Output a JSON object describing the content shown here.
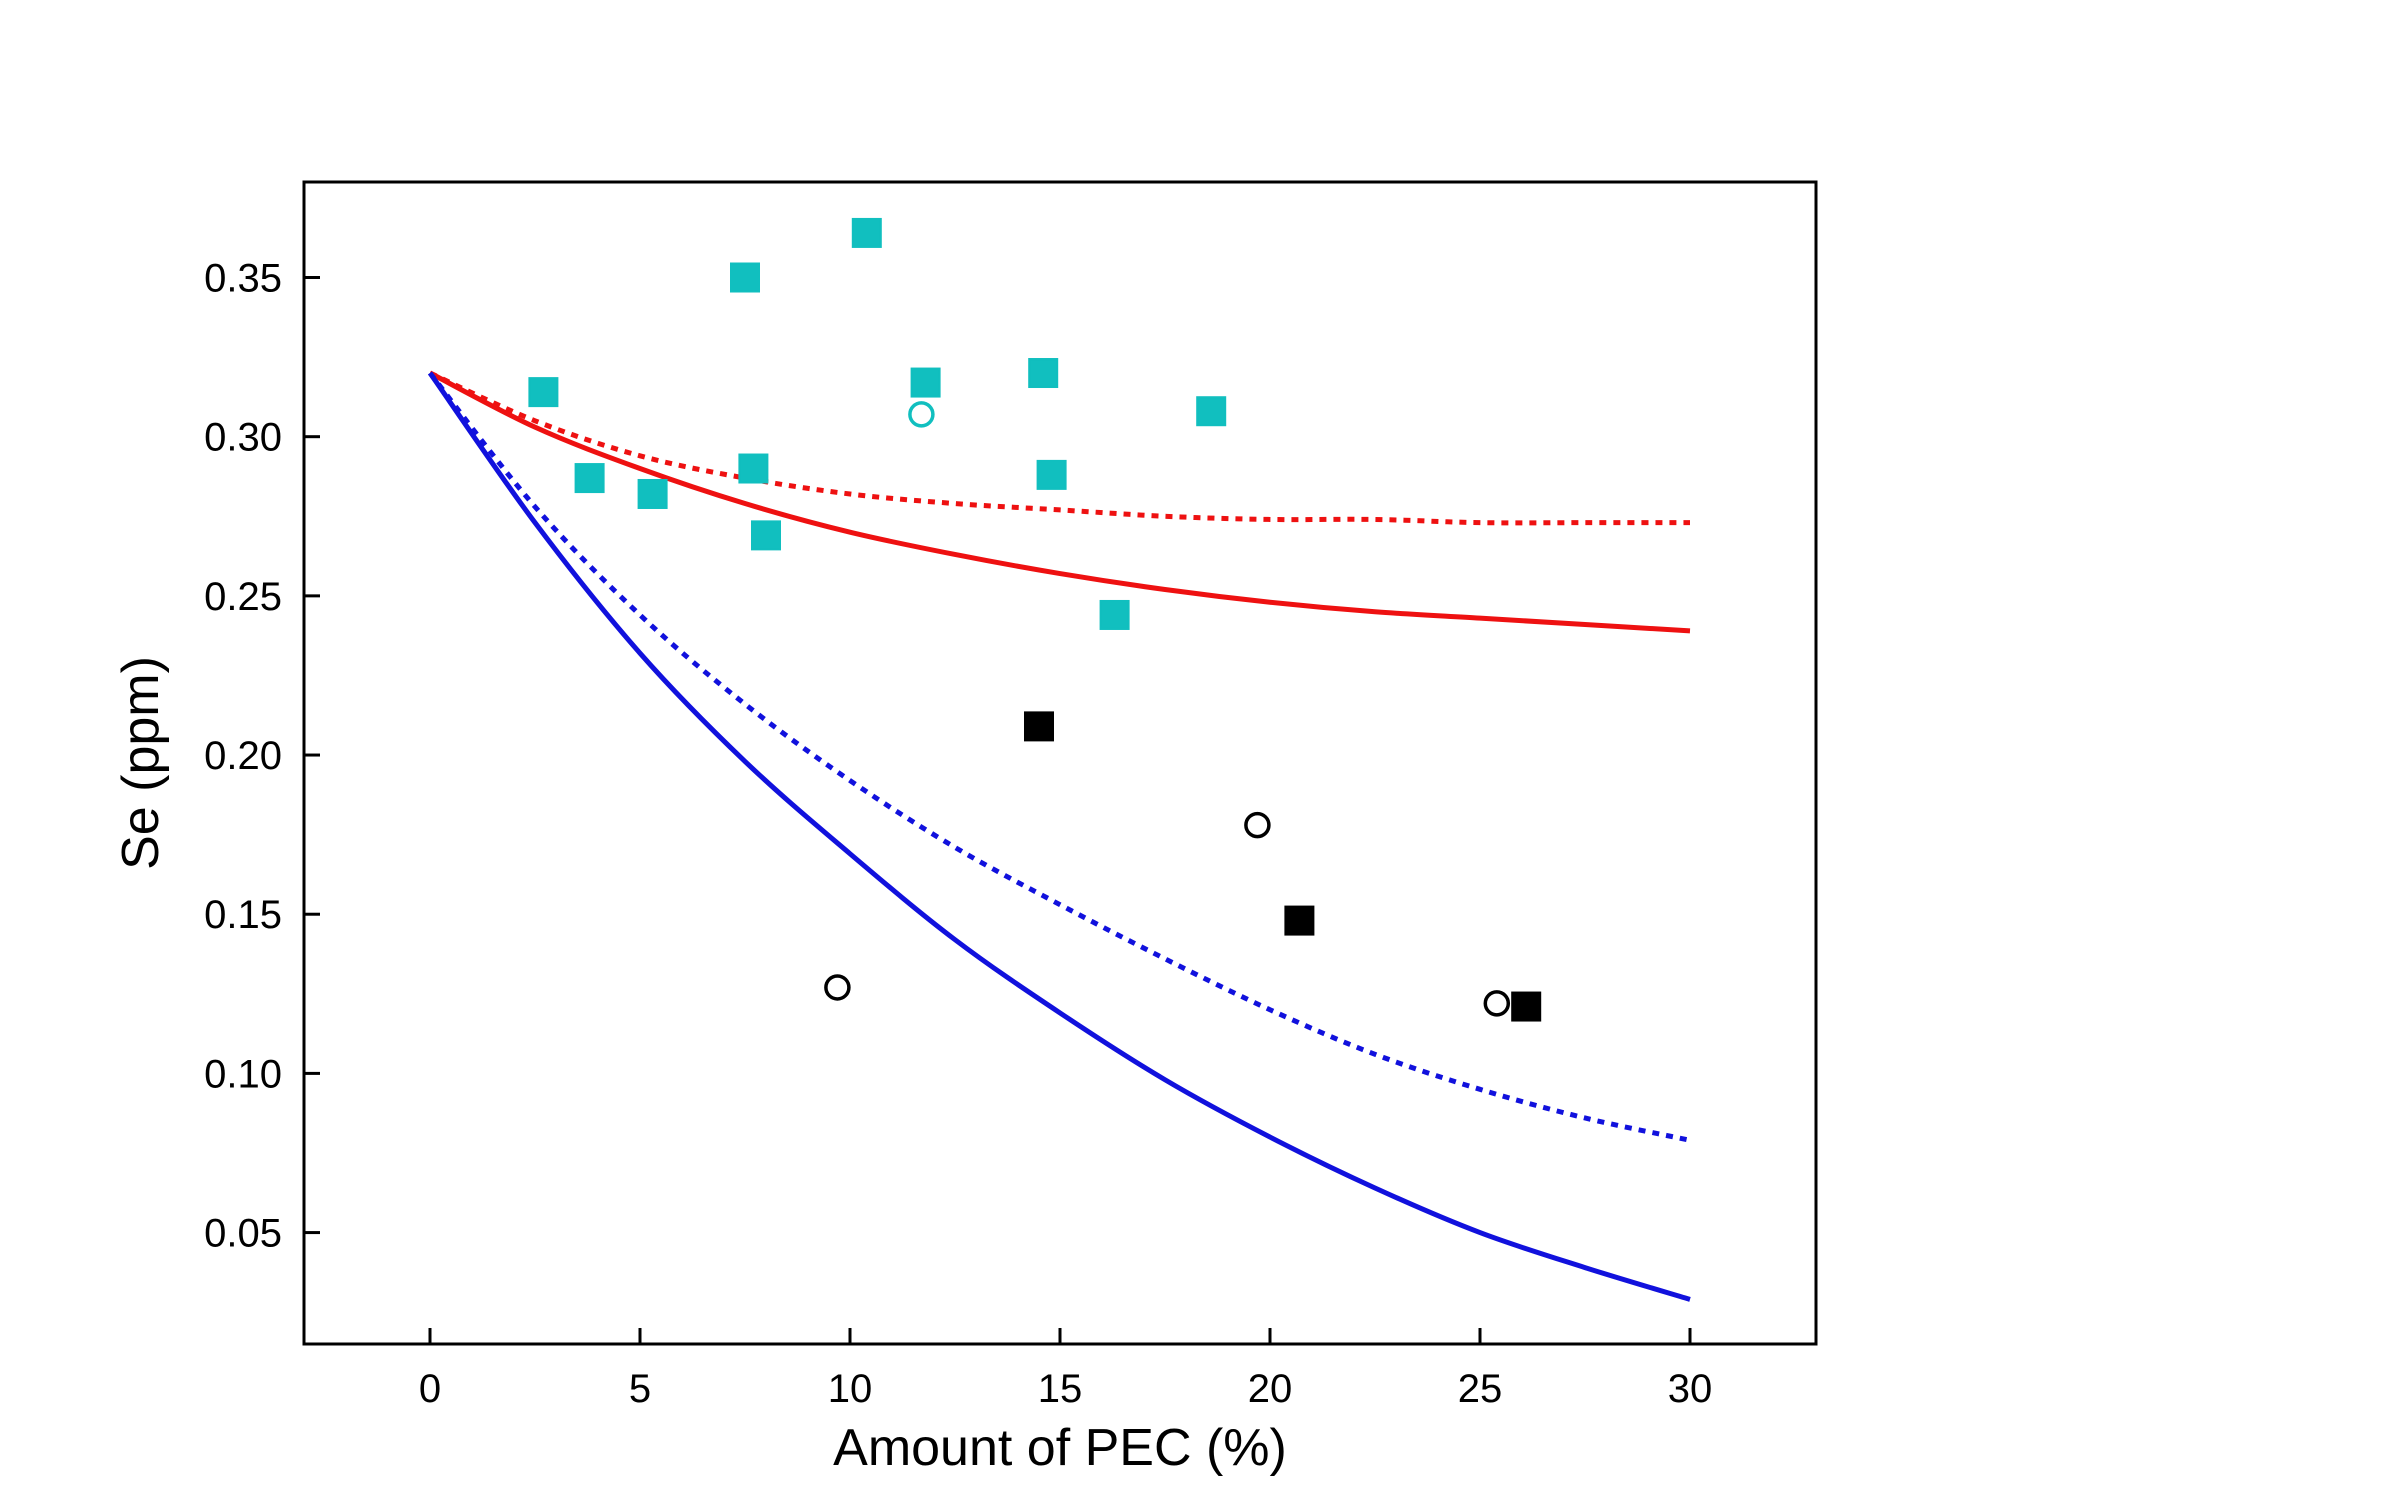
{
  "chart_data": {
    "type": "scatter",
    "xlabel": "Amount of PEC (%)",
    "ylabel": "Se (ppm)",
    "xlim": [
      -3,
      33
    ],
    "ylim": [
      0.015,
      0.38
    ],
    "x_ticks": [
      0,
      5,
      10,
      15,
      20,
      25,
      30
    ],
    "x_tick_labels": [
      "0",
      "5",
      "10",
      "15",
      "20",
      "25",
      "30"
    ],
    "y_ticks": [
      0.05,
      0.1,
      0.15,
      0.2,
      0.25,
      0.3,
      0.35
    ],
    "y_tick_labels": [
      "0.05",
      "0.10",
      "0.15",
      "0.20",
      "0.25",
      "0.30",
      "0.35"
    ],
    "grid": false,
    "legend": "none",
    "colors": {
      "red": "#ee1111",
      "blue": "#1111dd",
      "cyan": "#11bfbf",
      "black": "#000000"
    },
    "lines": [
      {
        "color": "#ee1111",
        "style": "solid",
        "x": [
          0,
          2.5,
          5,
          7.5,
          10,
          12.5,
          15,
          17.5,
          20,
          22.5,
          25,
          27.5,
          30
        ],
        "y": [
          0.32,
          0.303,
          0.29,
          0.279,
          0.27,
          0.263,
          0.257,
          0.252,
          0.248,
          0.245,
          0.243,
          0.241,
          0.239
        ]
      },
      {
        "color": "#ee1111",
        "style": "dotted",
        "x": [
          0,
          2.5,
          5,
          7.5,
          10,
          12.5,
          15,
          17.5,
          20,
          22.5,
          25,
          27.5,
          30
        ],
        "y": [
          0.32,
          0.305,
          0.294,
          0.287,
          0.282,
          0.279,
          0.277,
          0.275,
          0.274,
          0.274,
          0.273,
          0.273,
          0.273
        ]
      },
      {
        "color": "#1111dd",
        "style": "solid",
        "x": [
          0,
          2.5,
          5,
          7.5,
          10,
          12.5,
          15,
          17.5,
          20,
          22.5,
          25,
          27.5,
          30
        ],
        "y": [
          0.32,
          0.273,
          0.232,
          0.198,
          0.169,
          0.142,
          0.119,
          0.098,
          0.08,
          0.064,
          0.05,
          0.039,
          0.029
        ]
      },
      {
        "color": "#1111dd",
        "style": "dotted",
        "x": [
          0,
          2.5,
          5,
          7.5,
          10,
          12.5,
          15,
          17.5,
          20,
          22.5,
          25,
          27.5,
          30
        ],
        "y": [
          0.32,
          0.278,
          0.244,
          0.216,
          0.192,
          0.171,
          0.153,
          0.136,
          0.12,
          0.106,
          0.095,
          0.086,
          0.079
        ]
      }
    ],
    "points": [
      {
        "shape": "square",
        "color": "#11bfbf",
        "filled": true,
        "x": 2.7,
        "y": 0.314
      },
      {
        "shape": "square",
        "color": "#11bfbf",
        "filled": true,
        "x": 3.8,
        "y": 0.287
      },
      {
        "shape": "square",
        "color": "#11bfbf",
        "filled": true,
        "x": 5.3,
        "y": 0.282
      },
      {
        "shape": "square",
        "color": "#11bfbf",
        "filled": true,
        "x": 7.5,
        "y": 0.35
      },
      {
        "shape": "square",
        "color": "#11bfbf",
        "filled": true,
        "x": 7.7,
        "y": 0.29
      },
      {
        "shape": "square",
        "color": "#11bfbf",
        "filled": true,
        "x": 8.0,
        "y": 0.269
      },
      {
        "shape": "square",
        "color": "#11bfbf",
        "filled": true,
        "x": 10.4,
        "y": 0.364
      },
      {
        "shape": "square",
        "color": "#11bfbf",
        "filled": true,
        "x": 11.8,
        "y": 0.317
      },
      {
        "shape": "circle",
        "color": "#11bfbf",
        "filled": false,
        "x": 11.7,
        "y": 0.307
      },
      {
        "shape": "square",
        "color": "#11bfbf",
        "filled": true,
        "x": 14.6,
        "y": 0.32
      },
      {
        "shape": "square",
        "color": "#11bfbf",
        "filled": true,
        "x": 14.8,
        "y": 0.288
      },
      {
        "shape": "square",
        "color": "#11bfbf",
        "filled": true,
        "x": 16.3,
        "y": 0.244
      },
      {
        "shape": "square",
        "color": "#11bfbf",
        "filled": true,
        "x": 18.6,
        "y": 0.308
      },
      {
        "shape": "square",
        "color": "#000000",
        "filled": true,
        "x": 14.5,
        "y": 0.209
      },
      {
        "shape": "square",
        "color": "#000000",
        "filled": true,
        "x": 20.7,
        "y": 0.148
      },
      {
        "shape": "square",
        "color": "#000000",
        "filled": true,
        "x": 26.1,
        "y": 0.121
      },
      {
        "shape": "circle",
        "color": "#000000",
        "filled": false,
        "x": 9.7,
        "y": 0.127
      },
      {
        "shape": "circle",
        "color": "#000000",
        "filled": false,
        "x": 19.7,
        "y": 0.178
      },
      {
        "shape": "circle",
        "color": "#000000",
        "filled": false,
        "x": 25.4,
        "y": 0.122
      }
    ]
  }
}
